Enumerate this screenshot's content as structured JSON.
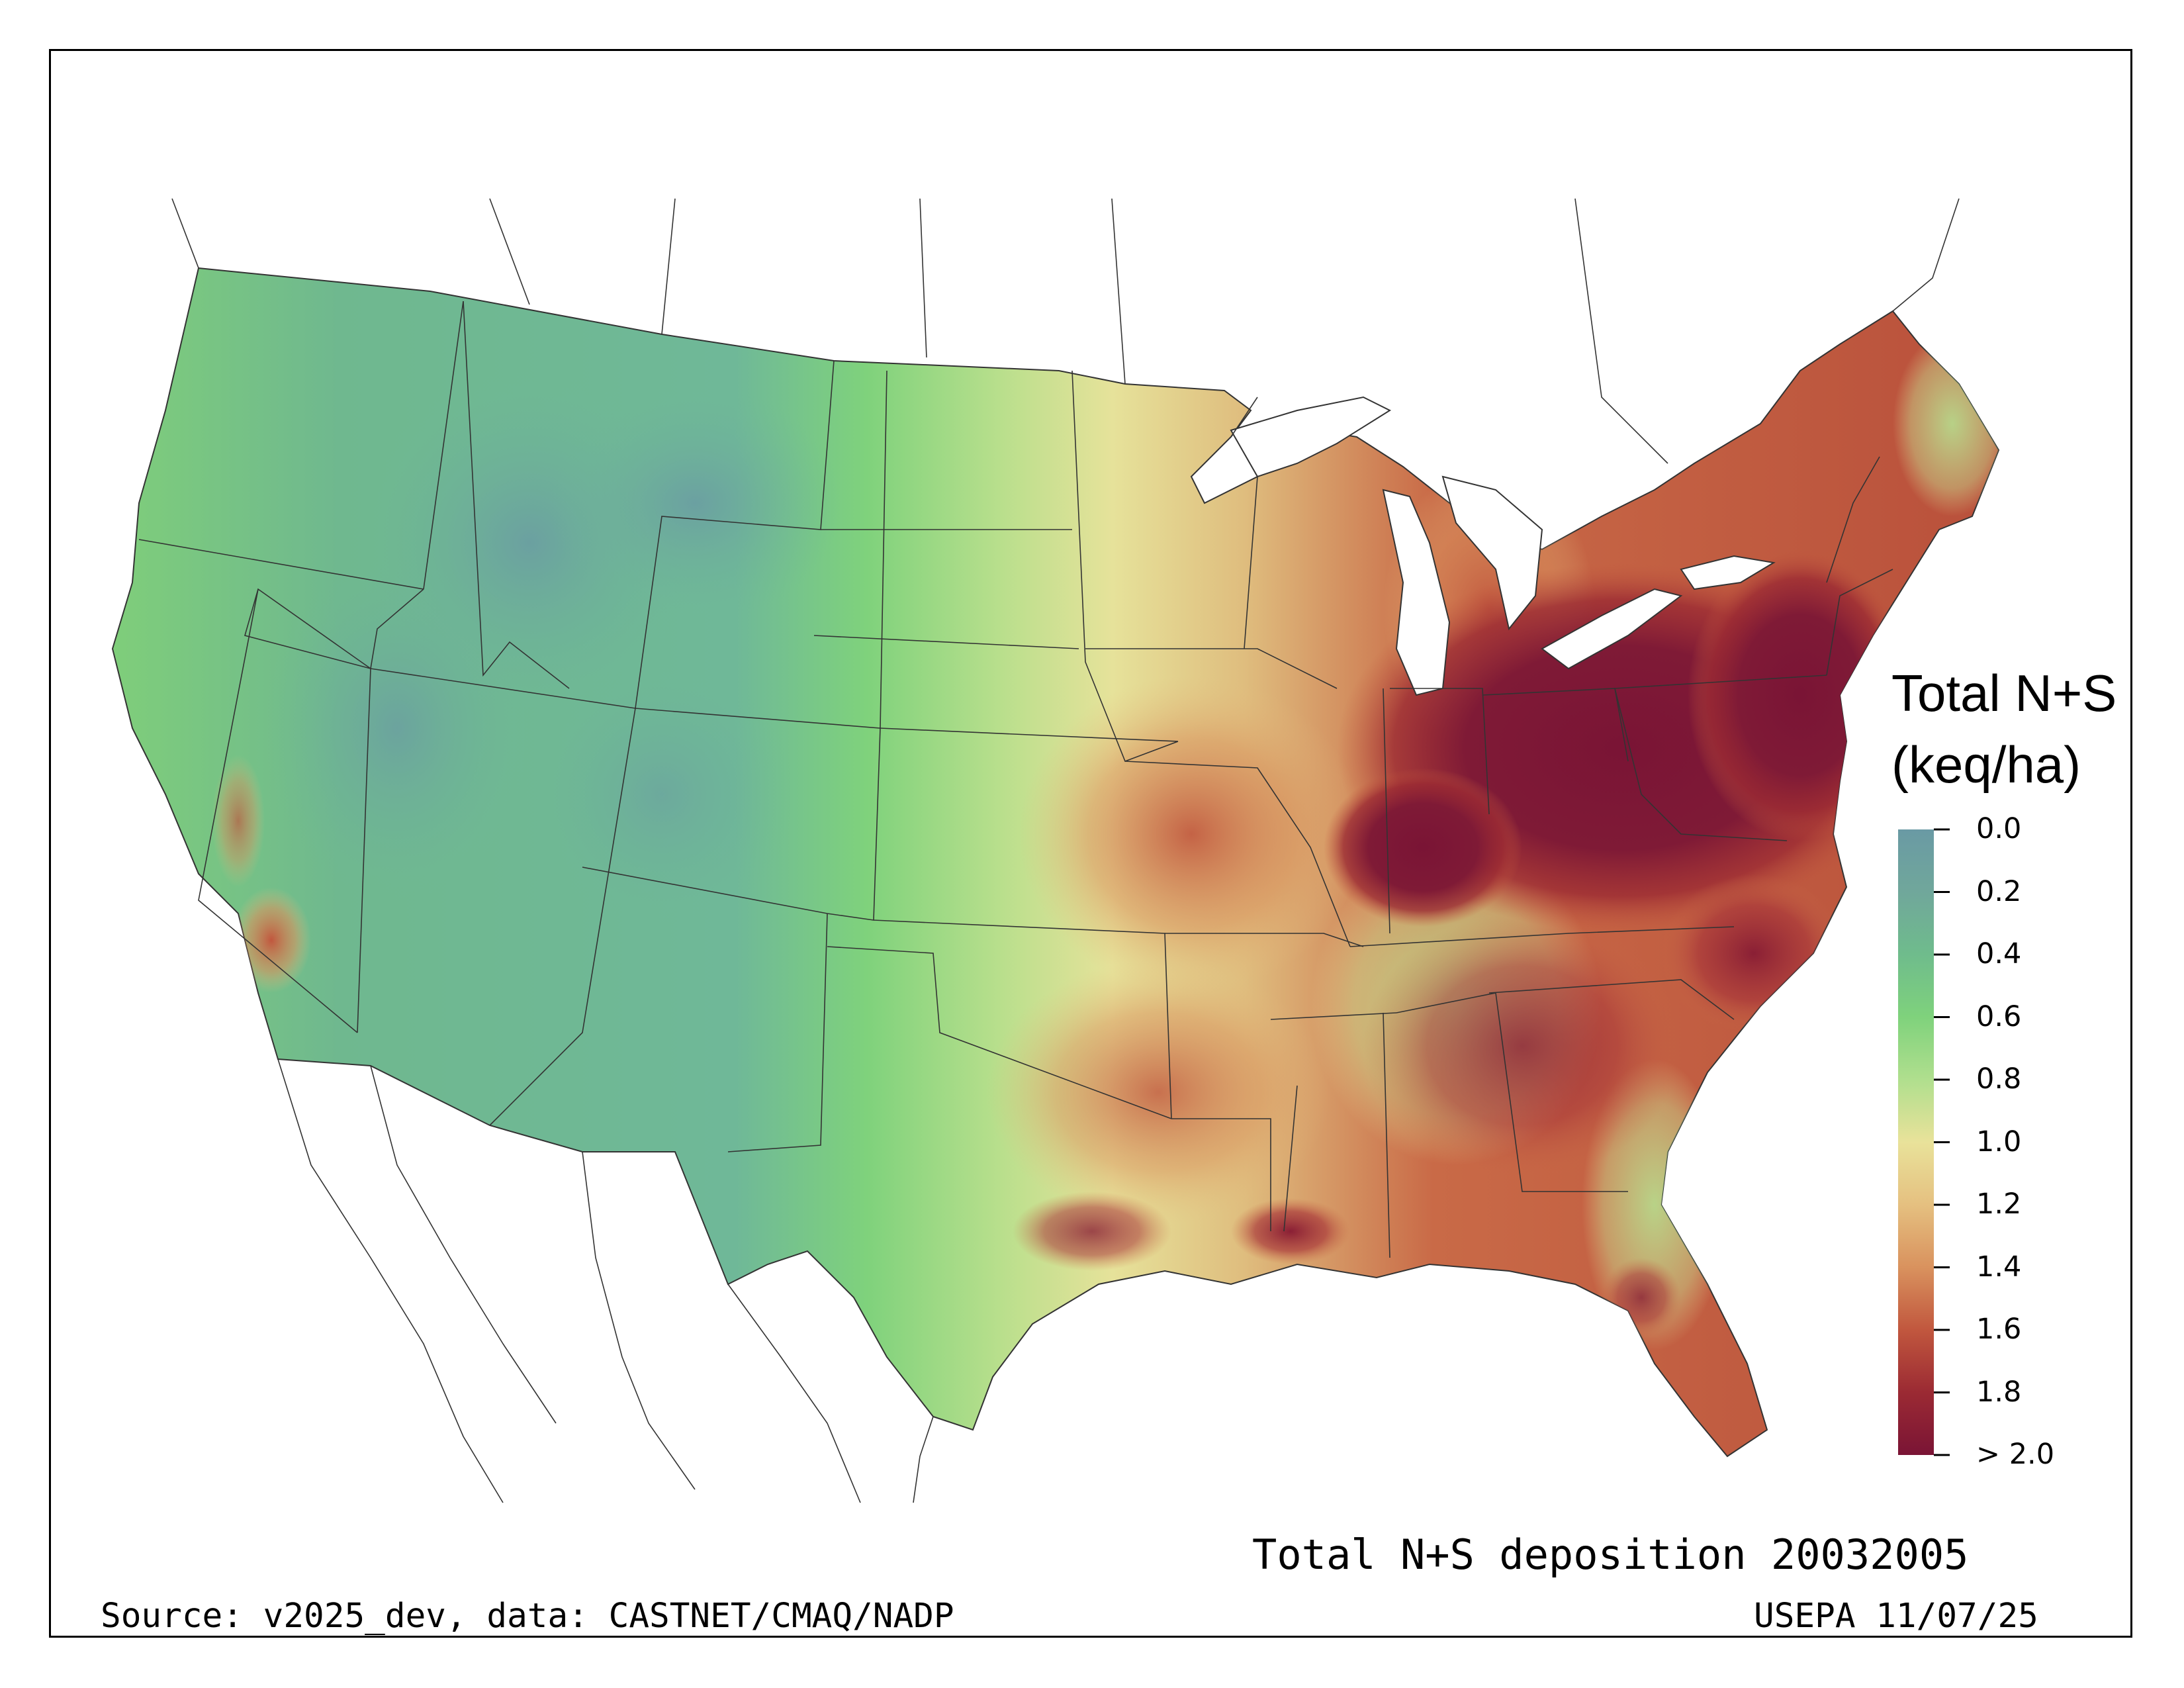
{
  "map": {
    "title": "Total N+S deposition 20032005",
    "source": "Source: v2025_dev, data: CASTNET/CMAQ/NADP",
    "credit": "USEPA 11/07/25"
  },
  "legend": {
    "title_line1": "Total N+S",
    "title_line2": "(keq/ha)",
    "ticks": [
      "0.0",
      "0.2",
      "0.4",
      "0.6",
      "0.8",
      "1.0",
      "1.2",
      "1.4",
      "1.6",
      "1.8",
      "> 2.0"
    ],
    "colors": [
      "#6a9aa4",
      "#70a79b",
      "#6fbc8c",
      "#7fd27c",
      "#b0df8e",
      "#e9e29a",
      "#e5c080",
      "#d9925e",
      "#c1573e",
      "#9b2a33",
      "#7a1435"
    ]
  },
  "colors": {
    "low": "#6a9aa4",
    "mid": "#e9e29a",
    "high": "#7a1435"
  }
}
